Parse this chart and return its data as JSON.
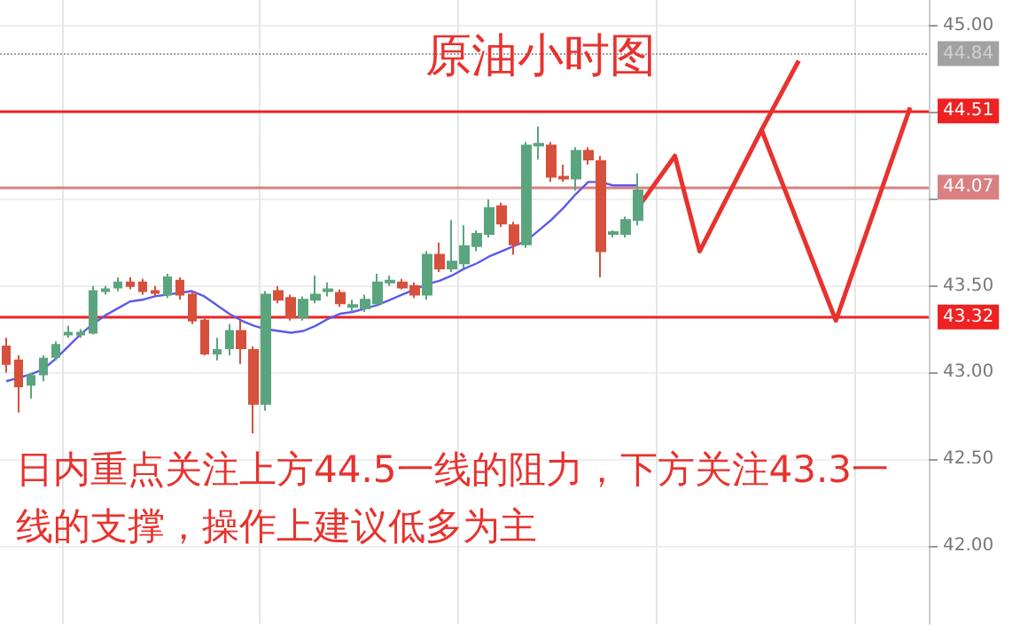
{
  "chart_data": {
    "type": "candlestick",
    "title": "原油小时图",
    "annotations": [
      "日内重点关注上方44.5一线的阻力，下方关注43.3一线的支撑，操作上建议低多为主"
    ],
    "categories": [
      null,
      null,
      null,
      null,
      null,
      null,
      null,
      null,
      null,
      null,
      null,
      null,
      null,
      null,
      null,
      null,
      null,
      null,
      null,
      null,
      null,
      null,
      null,
      null,
      null,
      null,
      null,
      null,
      null,
      null,
      null,
      null,
      null,
      null,
      null,
      null,
      null,
      null,
      null,
      null,
      null,
      null,
      null,
      null,
      null,
      null,
      null,
      null,
      null,
      null,
      null,
      null,
      null,
      null,
      null,
      null,
      null,
      null,
      null,
      null,
      null,
      null,
      null,
      null,
      null,
      null,
      null,
      null,
      null,
      null,
      null,
      null,
      null,
      null,
      null
    ],
    "series": [
      {
        "colors": [
          "#d6503c",
          "#d6503c",
          "#5ba57e",
          "#5ba57e",
          "#5ba57e",
          "#5ba57e",
          "#5ba57e",
          "#5ba57e",
          "#5ba57e",
          "#5ba57e",
          "#d6503c",
          "#d6503c",
          "#d6503c",
          "#5ba57e",
          "#d6503c",
          "#d6503c",
          "#d6503c",
          "#5ba57e",
          "#5ba57e",
          "#d6503c",
          "#d6503c",
          "#5ba57e",
          "#d6503c",
          "#d6503c",
          "#5ba57e",
          "#5ba57e",
          "#5ba57e",
          "#d6503c",
          "#5ba57e",
          "#5ba57e",
          "#5ba57e",
          "#5ba57e",
          "#d6503c",
          "#d6503c",
          "#5ba57e",
          "#d6503c",
          "#5ba57e",
          "#5ba57e",
          "#5ba57e",
          "#5ba57e",
          "#d6503c",
          "#d6503c",
          "#5ba57e",
          "#5ba57e",
          "#d6503c",
          "#d6503c",
          "#5ba57e",
          "#d6503c",
          "#d6503c",
          "#5ba57e",
          "#5ba57e",
          "#5ba57e",
          null,
          null,
          null,
          null,
          null,
          null,
          null,
          null,
          null,
          null,
          null,
          null,
          null,
          null,
          null,
          null,
          null,
          null,
          null,
          null,
          null,
          null,
          null
        ],
        "ohlc": [
          [
            43.15,
            43.2,
            43.0,
            43.05
          ],
          [
            43.07,
            43.1,
            42.77,
            42.92
          ],
          [
            42.93,
            43.0,
            42.85,
            42.98
          ],
          [
            42.99,
            43.1,
            42.95,
            43.08
          ],
          [
            43.09,
            43.18,
            43.07,
            43.16
          ],
          [
            43.22,
            43.27,
            43.2,
            43.23
          ],
          [
            43.22,
            43.25,
            43.2,
            43.23
          ],
          [
            43.23,
            43.5,
            43.22,
            43.47
          ],
          [
            43.47,
            43.5,
            43.45,
            43.48
          ],
          [
            43.49,
            43.55,
            43.47,
            43.52
          ],
          [
            43.52,
            43.55,
            43.48,
            43.5
          ],
          [
            43.52,
            43.54,
            43.45,
            43.47
          ],
          [
            43.47,
            43.5,
            43.44,
            43.46
          ],
          [
            43.45,
            43.57,
            43.43,
            43.55
          ],
          [
            43.53,
            43.55,
            43.42,
            43.45
          ],
          [
            43.45,
            43.47,
            43.28,
            43.3
          ],
          [
            43.3,
            43.32,
            43.1,
            43.11
          ],
          [
            43.11,
            43.2,
            43.07,
            43.13
          ],
          [
            43.14,
            43.28,
            43.1,
            43.24
          ],
          [
            43.24,
            43.3,
            43.05,
            43.14
          ],
          [
            43.13,
            43.15,
            42.65,
            42.82
          ],
          [
            42.82,
            43.47,
            42.78,
            43.45
          ],
          [
            43.47,
            43.5,
            43.4,
            43.42
          ],
          [
            43.43,
            43.45,
            43.3,
            43.32
          ],
          [
            43.32,
            43.44,
            43.3,
            43.42
          ],
          [
            43.42,
            43.56,
            43.4,
            43.45
          ],
          [
            43.47,
            43.52,
            43.44,
            43.48
          ],
          [
            43.46,
            43.48,
            43.38,
            43.4
          ],
          [
            43.38,
            43.42,
            43.35,
            43.39
          ],
          [
            43.37,
            43.45,
            43.35,
            43.42
          ],
          [
            43.4,
            43.57,
            43.39,
            43.52
          ],
          [
            43.52,
            43.56,
            43.5,
            43.53
          ],
          [
            43.52,
            43.54,
            43.48,
            43.49
          ],
          [
            43.5,
            43.52,
            43.43,
            43.45
          ],
          [
            43.45,
            43.7,
            43.42,
            43.68
          ],
          [
            43.68,
            43.75,
            43.58,
            43.6
          ],
          [
            43.6,
            43.88,
            43.58,
            43.64
          ],
          [
            43.63,
            43.85,
            43.6,
            43.73
          ],
          [
            43.73,
            43.82,
            43.7,
            43.8
          ],
          [
            43.8,
            44.0,
            43.78,
            43.95
          ],
          [
            43.96,
            43.98,
            43.84,
            43.86
          ],
          [
            43.85,
            43.87,
            43.68,
            43.74
          ],
          [
            43.74,
            44.33,
            43.72,
            44.31
          ],
          [
            44.31,
            44.42,
            44.23,
            44.32
          ],
          [
            44.31,
            44.33,
            44.1,
            44.13
          ],
          [
            44.13,
            44.2,
            44.1,
            44.12
          ],
          [
            44.12,
            44.3,
            44.05,
            44.28
          ],
          [
            44.28,
            44.3,
            44.2,
            44.23
          ],
          [
            44.22,
            44.25,
            43.55,
            43.7
          ],
          [
            43.8,
            43.82,
            43.78,
            43.81
          ],
          [
            43.8,
            43.9,
            43.78,
            43.88
          ],
          [
            43.88,
            44.15,
            43.85,
            44.05
          ],
          null,
          null,
          null,
          null,
          null,
          null,
          null,
          null,
          null,
          null,
          null,
          null,
          null,
          null,
          null,
          null,
          null,
          null,
          null,
          null,
          null,
          null,
          null
        ]
      },
      {
        "type": "line",
        "color": "#5b5bea",
        "values": [
          42.95,
          42.97,
          42.99,
          43.02,
          43.08,
          43.15,
          43.22,
          43.28,
          43.33,
          43.37,
          43.41,
          43.42,
          43.44,
          43.45,
          43.46,
          43.47,
          43.44,
          43.39,
          43.34,
          43.3,
          43.27,
          43.25,
          43.24,
          43.23,
          43.24,
          43.27,
          43.31,
          43.34,
          43.35,
          43.37,
          43.39,
          43.42,
          43.45,
          43.48,
          43.51,
          43.53,
          43.56,
          43.6,
          43.63,
          43.67,
          43.7,
          43.73,
          43.76,
          43.82,
          43.88,
          43.95,
          44.03,
          44.1,
          44.1,
          44.08,
          44.08,
          44.08,
          null,
          null,
          null,
          null,
          null,
          null,
          null,
          null,
          null,
          null,
          null,
          null,
          null,
          null,
          null,
          null,
          null,
          null,
          null,
          null,
          null,
          null,
          null
        ]
      },
      {
        "type": "line",
        "color": "#e8322e",
        "values": [
          null,
          null,
          null,
          null,
          null,
          null,
          null,
          null,
          null,
          null,
          null,
          null,
          null,
          null,
          null,
          null,
          null,
          null,
          null,
          null,
          null,
          null,
          null,
          null,
          null,
          null,
          null,
          null,
          null,
          null,
          null,
          null,
          null,
          null,
          null,
          null,
          null,
          null,
          null,
          null,
          null,
          null,
          null,
          null,
          null,
          null,
          null,
          null,
          null,
          null,
          null,
          43.95,
          null,
          null,
          44.25,
          null,
          43.7,
          null,
          null,
          null,
          null,
          44.4,
          null,
          null,
          null,
          null,
          null,
          43.3,
          null,
          null,
          null,
          null,
          null,
          44.53,
          null
        ]
      },
      {
        "type": "line",
        "color": "#e8322e",
        "values": [
          null,
          null,
          null,
          null,
          null,
          null,
          null,
          null,
          null,
          null,
          null,
          null,
          null,
          null,
          null,
          null,
          null,
          null,
          null,
          null,
          null,
          null,
          null,
          null,
          null,
          null,
          null,
          null,
          null,
          null,
          null,
          null,
          null,
          null,
          null,
          null,
          null,
          null,
          null,
          null,
          null,
          null,
          null,
          null,
          null,
          null,
          null,
          null,
          null,
          null,
          null,
          null,
          null,
          null,
          null,
          null,
          null,
          null,
          null,
          null,
          null,
          44.4,
          null,
          null,
          44.8,
          null,
          null,
          null,
          null,
          null,
          null,
          null,
          null,
          null,
          null
        ]
      }
    ],
    "ylim": [
      41.55,
      45.15
    ],
    "yticks": [
      {
        "value": 42,
        "label": "42.00"
      },
      {
        "value": 42.5,
        "label": "42.50"
      },
      {
        "value": 43,
        "label": "43.00"
      },
      {
        "value": 43.5,
        "label": "43.50"
      },
      {
        "value": 44,
        "label": null
      },
      {
        "value": 44.5,
        "label": null
      },
      {
        "value": 45,
        "label": "45.00"
      }
    ],
    "ref_lines": [
      {
        "axis": "y",
        "value": 44.84,
        "label": "44.84",
        "color": "#444444",
        "line_style": "dotted"
      },
      {
        "axis": "y",
        "value": 44.51,
        "label": "44.51",
        "color": "#ee2222",
        "line_style": "solid"
      },
      {
        "axis": "y",
        "value": 44.07,
        "label": "44.07",
        "color": "#d98080",
        "line_style": "solid"
      },
      {
        "axis": "y",
        "value": 43.32,
        "label": "43.32",
        "color": "#ee2222",
        "line_style": "solid"
      }
    ],
    "grid": true,
    "marker": "none"
  }
}
